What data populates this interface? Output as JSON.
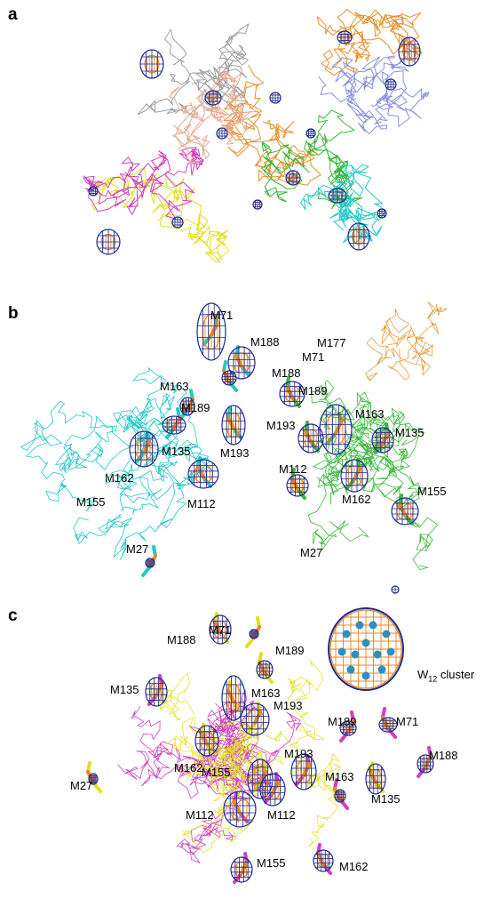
{
  "panels": {
    "a": {
      "letter": "a"
    },
    "b": {
      "letter": "b",
      "labels": [
        "M71",
        "M188",
        "M163",
        "M189",
        "M135",
        "M193",
        "M162",
        "M155",
        "M112",
        "M27",
        "M71",
        "M177",
        "M188",
        "M189",
        "M163",
        "M193",
        "M135",
        "M112",
        "M162",
        "M155",
        "M27"
      ]
    },
    "c": {
      "letter": "c",
      "cluster_label": {
        "text": "W",
        "subscript": "12",
        "suffix": " cluster"
      },
      "labels": [
        "M188",
        "M71",
        "M189",
        "M135",
        "M163",
        "M193",
        "M162",
        "M155",
        "M112",
        "M112",
        "M27",
        "M193",
        "M163",
        "M189",
        "M71",
        "M188",
        "M135",
        "M155",
        "M162"
      ]
    }
  },
  "colors": {
    "density_mesh": "#1e2a8c",
    "anomalous_mesh": "#e8842a",
    "tungsten": "#2d8fbf",
    "chain_colors": [
      "#a0a0a0",
      "#e8902a",
      "#8a90e0",
      "#3ab83a",
      "#22c8c8",
      "#e0e020",
      "#d040c0",
      "#e8a890"
    ]
  }
}
